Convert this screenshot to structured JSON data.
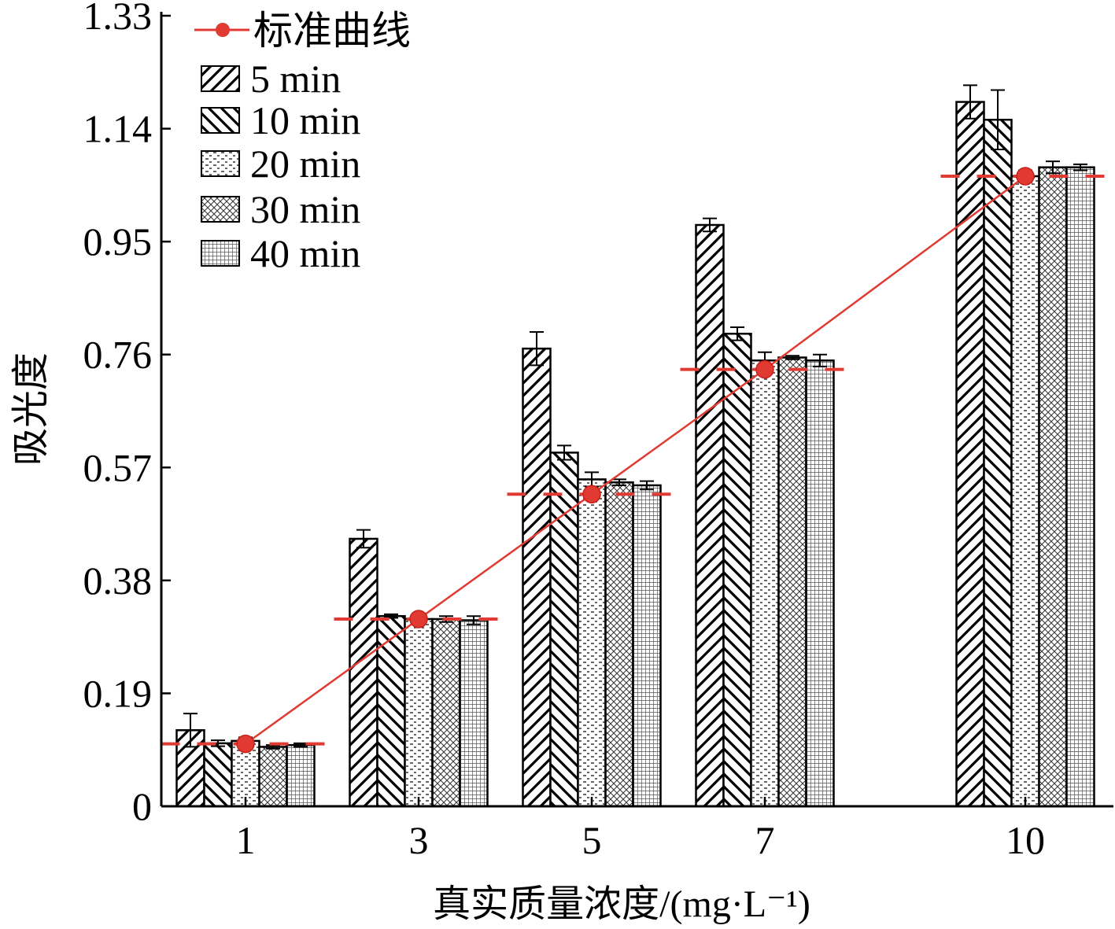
{
  "chart_data": {
    "type": "bar",
    "xlabel": "真实质量浓度/(mg·L⁻¹)",
    "ylabel": "吸光度",
    "ylim": [
      0,
      1.33
    ],
    "yticks": [
      "0",
      "0.19",
      "0.38",
      "0.57",
      "0.76",
      "0.95",
      "1.14",
      "1.33"
    ],
    "categories": [
      "1",
      "3",
      "5",
      "7",
      "10"
    ],
    "legend_position": "top-left",
    "series": [
      {
        "name": "5 min",
        "pattern": "diag-forward",
        "values": [
          0.128,
          0.45,
          0.77,
          0.978,
          1.185
        ],
        "errors": [
          0.028,
          0.015,
          0.028,
          0.011,
          0.028
        ]
      },
      {
        "name": "10 min",
        "pattern": "diag-back",
        "values": [
          0.106,
          0.32,
          0.595,
          0.795,
          1.155
        ],
        "errors": [
          0.005,
          0.003,
          0.012,
          0.011,
          0.05
        ]
      },
      {
        "name": "20 min",
        "pattern": "dashes",
        "values": [
          0.11,
          0.315,
          0.55,
          0.75,
          1.06
        ],
        "errors": [
          0.006,
          0.006,
          0.012,
          0.014,
          0.01
        ]
      },
      {
        "name": "30 min",
        "pattern": "crosshatch",
        "values": [
          0.1,
          0.315,
          0.545,
          0.755,
          1.075
        ],
        "errors": [
          0.003,
          0.005,
          0.005,
          0.003,
          0.01
        ]
      },
      {
        "name": "40 min",
        "pattern": "grid",
        "values": [
          0.103,
          0.313,
          0.54,
          0.75,
          1.075
        ],
        "errors": [
          0.003,
          0.007,
          0.007,
          0.01,
          0.005
        ]
      }
    ],
    "standard_curve": {
      "name": "标准曲线",
      "color": "#e03a32",
      "points": [
        {
          "x": "1",
          "y": 0.105
        },
        {
          "x": "3",
          "y": 0.315
        },
        {
          "x": "5",
          "y": 0.525
        },
        {
          "x": "7",
          "y": 0.735
        },
        {
          "x": "10",
          "y": 1.06
        }
      ]
    }
  }
}
